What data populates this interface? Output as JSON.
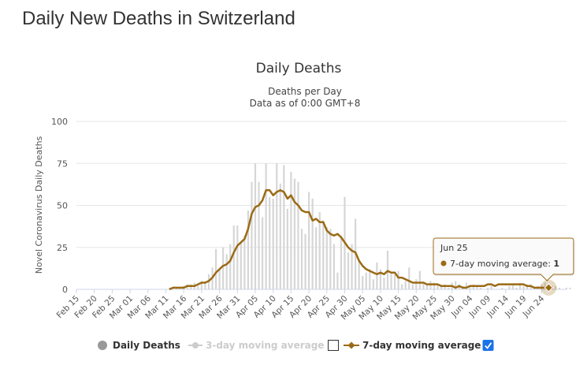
{
  "page": {
    "title": "Daily New Deaths in Switzerland"
  },
  "chart_data": {
    "type": "bar",
    "title": "Daily Deaths",
    "subtitle_line1": "Deaths per Day",
    "subtitle_line2": "Data as of 0:00 GMT+8",
    "ylabel": "Novel Coronavirus Daily Deaths",
    "xlabel": "",
    "ylim": [
      0,
      100
    ],
    "yticks": [
      "0",
      "25",
      "50",
      "75",
      "100"
    ],
    "xtick_labels": [
      "Feb 15",
      "Feb 20",
      "Feb 25",
      "Mar 01",
      "Mar 06",
      "Mar 11",
      "Mar 16",
      "Mar 21",
      "Mar 26",
      "Mar 31",
      "Apr 05",
      "Apr 10",
      "Apr 15",
      "Apr 20",
      "Apr 25",
      "Apr 30",
      "May 05",
      "May 10",
      "May 15",
      "May 20",
      "May 25",
      "May 30",
      "Jun 04",
      "Jun 09",
      "Jun 14",
      "Jun 19",
      "Jun 24"
    ],
    "grid": true,
    "legend_position": "bottom",
    "series": [
      {
        "name": "Daily Deaths",
        "color": "#d6d6d6",
        "values": [
          0,
          0,
          0,
          0,
          0,
          0,
          0,
          0,
          0,
          0,
          0,
          0,
          0,
          0,
          0,
          0,
          0,
          0,
          0,
          0,
          0,
          0,
          0,
          0,
          0,
          0,
          1,
          0,
          1,
          1,
          2,
          3,
          3,
          4,
          2,
          5,
          4,
          9,
          13,
          24,
          12,
          25,
          21,
          27,
          38,
          38,
          28,
          32,
          47,
          64,
          75,
          64,
          43,
          75,
          55,
          54,
          75,
          63,
          74,
          48,
          70,
          66,
          64,
          36,
          33,
          58,
          54,
          37,
          46,
          41,
          37,
          36,
          27,
          10,
          32,
          55,
          22,
          27,
          42,
          17,
          8,
          10,
          12,
          6,
          16,
          12,
          7,
          23,
          10,
          9,
          11,
          3,
          5,
          13,
          3,
          6,
          11,
          4,
          3,
          5,
          4,
          3,
          2,
          3,
          1,
          4,
          5,
          3,
          2,
          4,
          2,
          3,
          2,
          1,
          0,
          1,
          2,
          0,
          0,
          1,
          0,
          2,
          3,
          1,
          4,
          2,
          3,
          3,
          1,
          2,
          3,
          4,
          2,
          2,
          2,
          1,
          0,
          1,
          1,
          0
        ]
      },
      {
        "name": "3-day moving average",
        "enabled": false,
        "color": "#cccccc"
      },
      {
        "name": "7-day moving average",
        "enabled": true,
        "color": "#9b6a15",
        "values": [
          0,
          0,
          0,
          0,
          0,
          0,
          0,
          0,
          0,
          0,
          0,
          0,
          0,
          0,
          0,
          0,
          0,
          0,
          0,
          0,
          0,
          0,
          0,
          0,
          0,
          0,
          0,
          1,
          1,
          1,
          1,
          2,
          2,
          2,
          3,
          4,
          4,
          5,
          7,
          10,
          12,
          14,
          15,
          17,
          22,
          26,
          28,
          30,
          36,
          45,
          49,
          50,
          53,
          59,
          59,
          56,
          58,
          59,
          58,
          54,
          56,
          52,
          50,
          47,
          46,
          46,
          41,
          42,
          40,
          40,
          35,
          33,
          32,
          33,
          31,
          28,
          25,
          23,
          22,
          17,
          14,
          12,
          11,
          10,
          9,
          10,
          9,
          11,
          10,
          10,
          7,
          7,
          6,
          5,
          4,
          4,
          4,
          4,
          3,
          3,
          3,
          3,
          2,
          2,
          2,
          2,
          1,
          2,
          1,
          1,
          2,
          2,
          2,
          2,
          2,
          3,
          3,
          2,
          3,
          3,
          3,
          3,
          3,
          3,
          3,
          3,
          2,
          2,
          1,
          1,
          1,
          1,
          1,
          1
        ]
      }
    ],
    "legend": [
      {
        "label": "Daily Deaths",
        "marker": "circle",
        "color": "#999999",
        "active": true,
        "checkbox": false
      },
      {
        "label": "3-day moving average",
        "marker": "circle-line",
        "color": "#cccccc",
        "active": false,
        "checkbox": true,
        "checked": false
      },
      {
        "label": "7-day moving average",
        "marker": "diamond-line",
        "color": "#9b6a15",
        "active": true,
        "checkbox": true,
        "checked": true
      }
    ],
    "tooltip": {
      "date": "Jun 25",
      "series": "7-day moving average",
      "value": "1",
      "separator": ": "
    }
  }
}
